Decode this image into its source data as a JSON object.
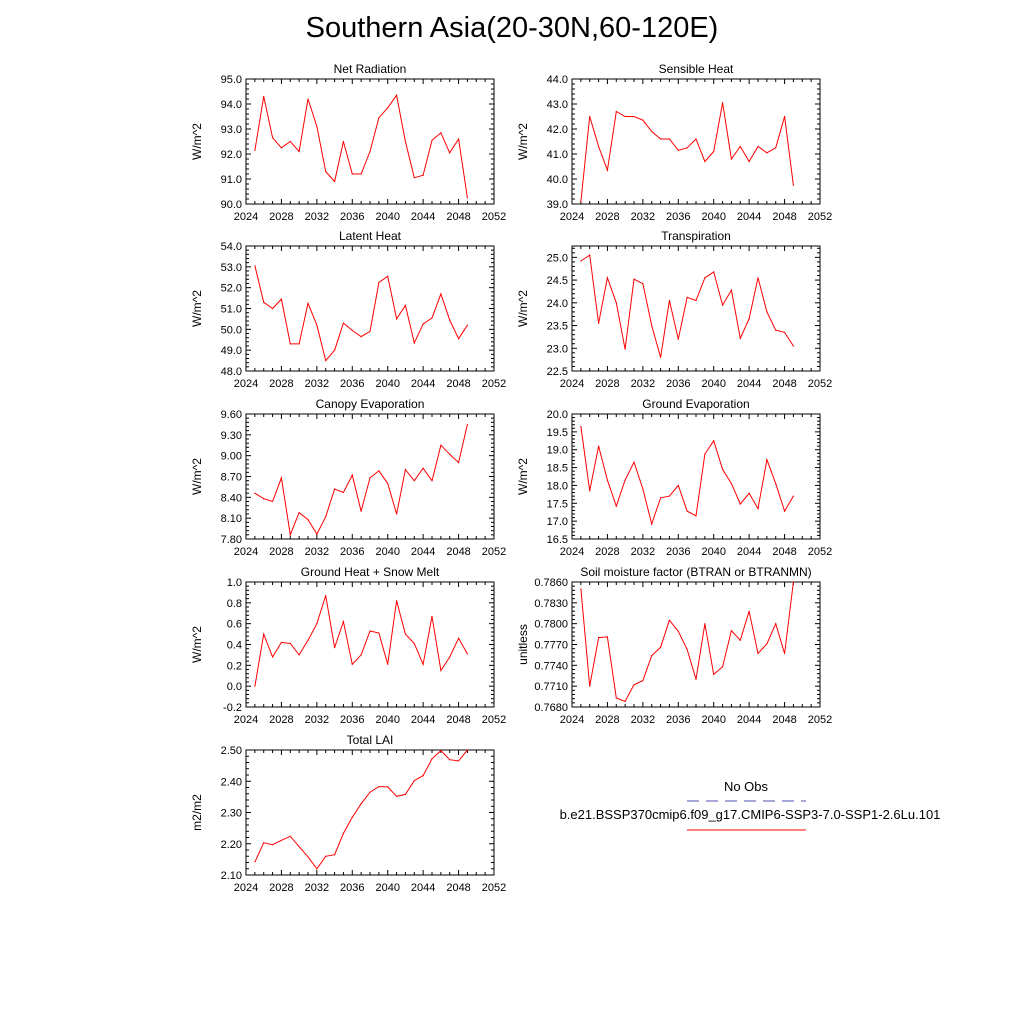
{
  "title": "Southern Asia(20-30N,60-120E)",
  "colors": {
    "model": "#ff0000",
    "obs": "#5050b0",
    "axis": "#000000"
  },
  "legend": {
    "obs_label": "No Obs",
    "model_label": "b.e21.BSSP370cmip6.f09_g17.CMIP6-SSP3-7.0-SSP1-2.6Lu.101"
  },
  "chart_data": [
    {
      "type": "line",
      "title": "Net Radiation",
      "ylabel": "W/m^2",
      "xlim": [
        2024,
        2052
      ],
      "ylim": [
        90,
        95
      ],
      "xticks": [
        "2024",
        "2028",
        "2032",
        "2036",
        "2040",
        "2044",
        "2048",
        "2052"
      ],
      "yticks": [
        "90.0",
        "91.0",
        "92.0",
        "93.0",
        "94.0",
        "95.0"
      ],
      "series": [
        {
          "x": [
            2025,
            2026,
            2027,
            2028,
            2029,
            2030,
            2031,
            2032,
            2033,
            2034,
            2035,
            2036,
            2037,
            2038,
            2039,
            2040,
            2041,
            2042,
            2043,
            2044,
            2045,
            2046,
            2047,
            2048,
            2049
          ],
          "values": [
            92.15,
            94.3,
            92.65,
            92.25,
            92.5,
            92.1,
            94.2,
            93.1,
            91.3,
            90.9,
            92.5,
            91.2,
            91.2,
            92.1,
            93.45,
            93.85,
            94.35,
            92.5,
            91.05,
            91.15,
            92.55,
            92.85,
            92.05,
            92.6,
            90.25
          ]
        }
      ]
    },
    {
      "type": "line",
      "title": "Sensible Heat",
      "ylabel": "W/m^2",
      "xlim": [
        2024,
        2052
      ],
      "ylim": [
        39,
        44
      ],
      "xticks": [
        "2024",
        "2028",
        "2032",
        "2036",
        "2040",
        "2044",
        "2048",
        "2052"
      ],
      "yticks": [
        "39.0",
        "40.0",
        "41.0",
        "42.0",
        "43.0",
        "44.0"
      ],
      "series": [
        {
          "x": [
            2025,
            2026,
            2027,
            2028,
            2029,
            2030,
            2031,
            2032,
            2033,
            2034,
            2035,
            2036,
            2037,
            2038,
            2039,
            2040,
            2041,
            2042,
            2043,
            2044,
            2045,
            2046,
            2047,
            2048,
            2049
          ],
          "values": [
            39.1,
            42.5,
            41.3,
            40.35,
            42.7,
            42.5,
            42.5,
            42.35,
            41.9,
            41.6,
            41.6,
            41.15,
            41.25,
            41.6,
            40.7,
            41.1,
            43.05,
            40.8,
            41.3,
            40.7,
            41.3,
            41.05,
            41.25,
            42.5,
            39.75
          ]
        }
      ]
    },
    {
      "type": "line",
      "title": "Latent Heat",
      "ylabel": "W/m^2",
      "xlim": [
        2024,
        2052
      ],
      "ylim": [
        48,
        54
      ],
      "xticks": [
        "2024",
        "2028",
        "2032",
        "2036",
        "2040",
        "2044",
        "2048",
        "2052"
      ],
      "yticks": [
        "48.0",
        "49.0",
        "50.0",
        "51.0",
        "52.0",
        "53.0",
        "54.0"
      ],
      "series": [
        {
          "x": [
            2025,
            2026,
            2027,
            2028,
            2029,
            2030,
            2031,
            2032,
            2033,
            2034,
            2035,
            2036,
            2037,
            2038,
            2039,
            2040,
            2041,
            2042,
            2043,
            2044,
            2045,
            2046,
            2047,
            2048,
            2049
          ],
          "values": [
            53.05,
            51.3,
            51.0,
            51.45,
            49.3,
            49.3,
            51.25,
            50.2,
            48.5,
            49.0,
            50.3,
            49.95,
            49.65,
            49.9,
            52.25,
            52.55,
            50.5,
            51.15,
            49.35,
            50.25,
            50.55,
            51.7,
            50.45,
            49.55,
            50.2
          ]
        }
      ]
    },
    {
      "type": "line",
      "title": "Transpiration",
      "ylabel": "W/m^2",
      "xlim": [
        2024,
        2052
      ],
      "ylim": [
        22.5,
        25.25
      ],
      "xticks": [
        "2024",
        "2028",
        "2032",
        "2036",
        "2040",
        "2044",
        "2048",
        "2052"
      ],
      "yticks": [
        "22.5",
        "23.0",
        "23.5",
        "24.0",
        "24.5",
        "25.0"
      ],
      "series": [
        {
          "x": [
            2025,
            2026,
            2027,
            2028,
            2029,
            2030,
            2031,
            2032,
            2033,
            2034,
            2035,
            2036,
            2037,
            2038,
            2039,
            2040,
            2041,
            2042,
            2043,
            2044,
            2045,
            2046,
            2047,
            2048,
            2049
          ],
          "values": [
            24.92,
            25.05,
            23.55,
            24.55,
            24.0,
            22.98,
            24.52,
            24.42,
            23.5,
            22.8,
            24.05,
            23.2,
            24.12,
            24.05,
            24.55,
            24.68,
            23.95,
            24.28,
            23.22,
            23.65,
            24.55,
            23.8,
            23.4,
            23.35,
            23.05
          ]
        }
      ]
    },
    {
      "type": "line",
      "title": "Canopy Evaporation",
      "ylabel": "W/m^2",
      "xlim": [
        2024,
        2052
      ],
      "ylim": [
        7.8,
        9.6
      ],
      "xticks": [
        "2024",
        "2028",
        "2032",
        "2036",
        "2040",
        "2044",
        "2048",
        "2052"
      ],
      "yticks": [
        "7.80",
        "8.10",
        "8.40",
        "8.70",
        "9.00",
        "9.30",
        "9.60"
      ],
      "series": [
        {
          "x": [
            2025,
            2026,
            2027,
            2028,
            2029,
            2030,
            2031,
            2032,
            2033,
            2034,
            2035,
            2036,
            2037,
            2038,
            2039,
            2040,
            2041,
            2042,
            2043,
            2044,
            2045,
            2046,
            2047,
            2048,
            2049
          ],
          "values": [
            8.46,
            8.38,
            8.34,
            8.68,
            7.86,
            8.18,
            8.08,
            7.87,
            8.12,
            8.52,
            8.47,
            8.72,
            8.2,
            8.68,
            8.78,
            8.6,
            8.16,
            8.8,
            8.64,
            8.82,
            8.64,
            9.15,
            9.02,
            8.9,
            9.45
          ]
        }
      ]
    },
    {
      "type": "line",
      "title": "Ground Evaporation",
      "ylabel": "W/m^2",
      "xlim": [
        2024,
        2052
      ],
      "ylim": [
        16.5,
        20
      ],
      "xticks": [
        "2024",
        "2028",
        "2032",
        "2036",
        "2040",
        "2044",
        "2048",
        "2052"
      ],
      "yticks": [
        "16.5",
        "17.0",
        "17.5",
        "18.0",
        "18.5",
        "19.0",
        "19.5",
        "20.0"
      ],
      "series": [
        {
          "x": [
            2025,
            2026,
            2027,
            2028,
            2029,
            2030,
            2031,
            2032,
            2033,
            2034,
            2035,
            2036,
            2037,
            2038,
            2039,
            2040,
            2041,
            2042,
            2043,
            2044,
            2045,
            2046,
            2047,
            2048,
            2049
          ],
          "values": [
            19.65,
            17.85,
            19.1,
            18.15,
            17.42,
            18.15,
            18.65,
            17.9,
            16.92,
            17.65,
            17.7,
            18.0,
            17.28,
            17.15,
            18.88,
            19.25,
            18.45,
            18.05,
            17.48,
            17.78,
            17.35,
            18.72,
            18.05,
            17.28,
            17.7
          ]
        }
      ]
    },
    {
      "type": "line",
      "title": "Ground Heat + Snow Melt",
      "ylabel": "W/m^2",
      "xlim": [
        2024,
        2052
      ],
      "ylim": [
        -0.2,
        1.0
      ],
      "xticks": [
        "2024",
        "2028",
        "2032",
        "2036",
        "2040",
        "2044",
        "2048",
        "2052"
      ],
      "yticks": [
        "-0.2",
        "0.0",
        "0.2",
        "0.4",
        "0.6",
        "0.8",
        "1.0"
      ],
      "series": [
        {
          "x": [
            2025,
            2026,
            2027,
            2028,
            2029,
            2030,
            2031,
            2032,
            2033,
            2034,
            2035,
            2036,
            2037,
            2038,
            2039,
            2040,
            2041,
            2042,
            2043,
            2044,
            2045,
            2046,
            2047,
            2048,
            2049
          ],
          "values": [
            0.0,
            0.5,
            0.28,
            0.42,
            0.41,
            0.3,
            0.44,
            0.6,
            0.87,
            0.37,
            0.62,
            0.21,
            0.3,
            0.53,
            0.51,
            0.21,
            0.82,
            0.5,
            0.41,
            0.21,
            0.67,
            0.15,
            0.28,
            0.46,
            0.31
          ]
        }
      ]
    },
    {
      "type": "line",
      "title": "Soil moisture factor (BTRAN or BTRANMN)",
      "ylabel": "unitless",
      "xlim": [
        2024,
        2052
      ],
      "ylim": [
        0.768,
        0.786
      ],
      "xticks": [
        "2024",
        "2028",
        "2032",
        "2036",
        "2040",
        "2044",
        "2048",
        "2052"
      ],
      "yticks": [
        "0.7680",
        "0.7710",
        "0.7740",
        "0.7770",
        "0.7800",
        "0.7830",
        "0.7860"
      ],
      "series": [
        {
          "x": [
            2025,
            2026,
            2027,
            2028,
            2029,
            2030,
            2031,
            2032,
            2033,
            2034,
            2035,
            2036,
            2037,
            2038,
            2039,
            2040,
            2041,
            2042,
            2043,
            2044,
            2045,
            2046,
            2047,
            2048,
            2049
          ],
          "values": [
            0.785,
            0.771,
            0.778,
            0.7781,
            0.7693,
            0.7688,
            0.7712,
            0.7718,
            0.7754,
            0.7766,
            0.7805,
            0.7789,
            0.7763,
            0.772,
            0.78,
            0.7727,
            0.7738,
            0.779,
            0.7776,
            0.7818,
            0.7757,
            0.7771,
            0.78,
            0.7757,
            0.786
          ]
        }
      ]
    },
    {
      "type": "line",
      "title": "Total LAI",
      "ylabel": "m2/m2",
      "xlim": [
        2024,
        2052
      ],
      "ylim": [
        2.1,
        2.5
      ],
      "xticks": [
        "2024",
        "2028",
        "2032",
        "2036",
        "2040",
        "2044",
        "2048",
        "2052"
      ],
      "yticks": [
        "2.10",
        "2.20",
        "2.30",
        "2.40",
        "2.50"
      ],
      "series": [
        {
          "x": [
            2025,
            2026,
            2027,
            2028,
            2029,
            2030,
            2031,
            2032,
            2033,
            2034,
            2035,
            2036,
            2037,
            2038,
            2039,
            2040,
            2041,
            2042,
            2043,
            2044,
            2045,
            2046,
            2047,
            2048,
            2049
          ],
          "values": [
            2.142,
            2.203,
            2.197,
            2.211,
            2.224,
            2.191,
            2.158,
            2.12,
            2.16,
            2.165,
            2.233,
            2.285,
            2.328,
            2.365,
            2.383,
            2.382,
            2.352,
            2.358,
            2.402,
            2.418,
            2.472,
            2.498,
            2.469,
            2.465,
            2.5
          ]
        }
      ]
    }
  ]
}
